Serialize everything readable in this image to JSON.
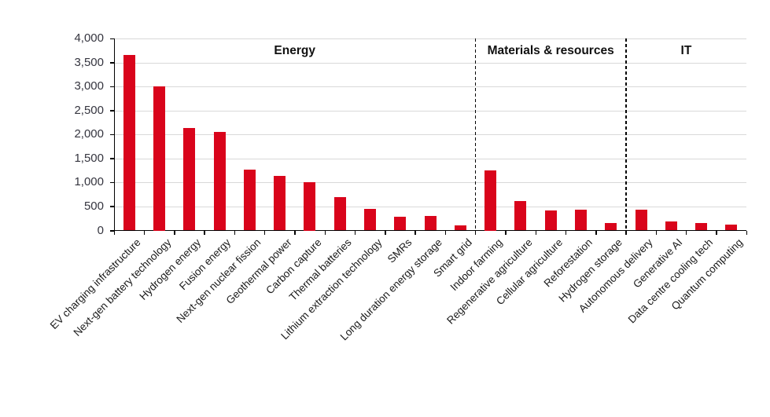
{
  "chart_data": {
    "type": "bar",
    "title": "",
    "categories": [
      "EV charging infrastructure",
      "Next-gen battery technology",
      "Hydrogen energy",
      "Fusion energy",
      "Next-gen nuclear fission",
      "Geothermal power",
      "Carbon capture",
      "Thermal batteries",
      "Lithium extraction technology",
      "SMRs",
      "Long duration energy storage",
      "Smart grid",
      "Indoor farming",
      "Regenerative agriculture",
      "Cellular agriculture",
      "Reforestation",
      "Hydrogen storage",
      "Autonomous delivery",
      "Generative AI",
      "Data centre cooling tech",
      "Quantum computing"
    ],
    "values": [
      3650,
      3000,
      2140,
      2050,
      1270,
      1130,
      1000,
      700,
      450,
      290,
      300,
      110,
      1250,
      620,
      420,
      430,
      160,
      430,
      190,
      160,
      120
    ],
    "sections": [
      {
        "label": "Energy",
        "count": 12
      },
      {
        "label": "Materials & resources",
        "count": 5
      },
      {
        "label": "IT",
        "count": 4
      }
    ],
    "y_ticks": [
      "0",
      "500",
      "1,000",
      "1,500",
      "2,000",
      "2,500",
      "3,000",
      "3,500",
      "4,000"
    ],
    "ylim": [
      0,
      4000
    ],
    "y_tick_step": 500,
    "xlabel": "",
    "ylabel": "",
    "grid": "horizontal",
    "legend": "none",
    "colors": {
      "bar": "#d9041b",
      "gridline": "#d9d9d9",
      "axis": "#000000",
      "y_tick_label": "#35353f",
      "category_label": "#1a1a1a",
      "section_header": "#111111",
      "divider": "#000000",
      "background": "#ffffff"
    }
  }
}
